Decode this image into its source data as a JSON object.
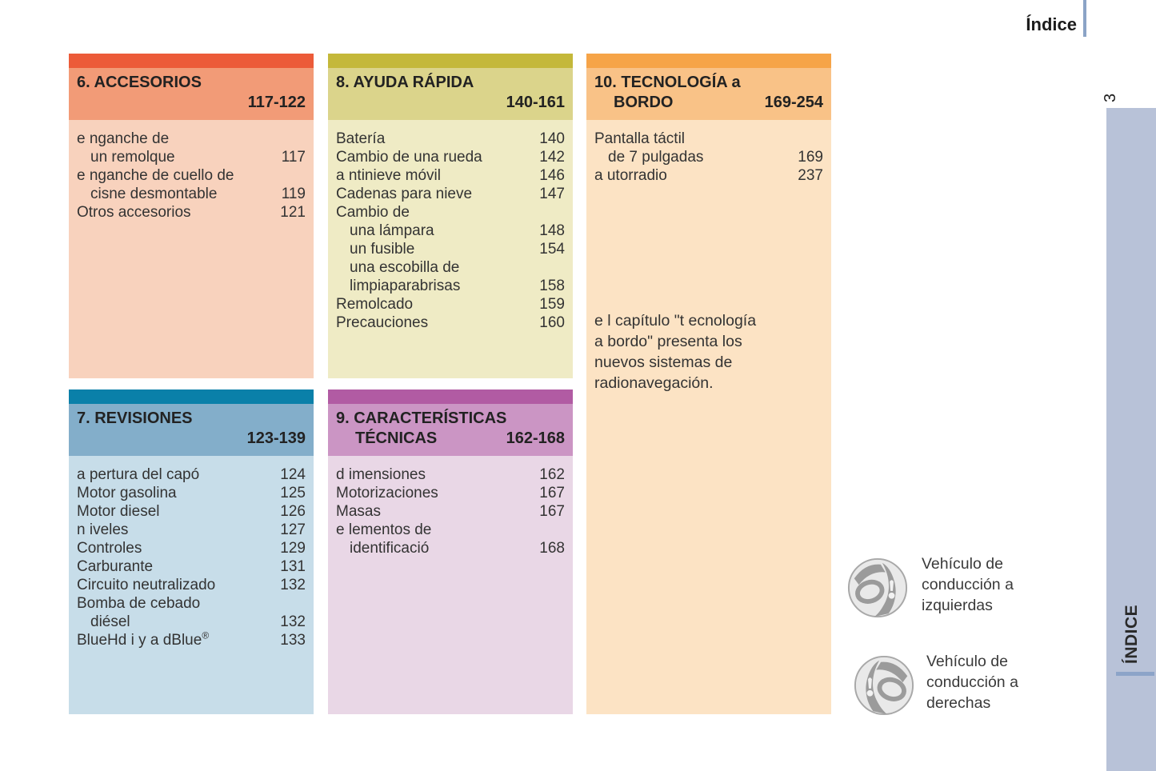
{
  "page": {
    "title": "Índice",
    "side_tab": "ÍNDICE",
    "page_number": "3"
  },
  "sections": [
    {
      "title_line1": "6. ACCESORIOS",
      "title_line2": "",
      "range": "117-122",
      "colors": {
        "bar": "#ec5b39",
        "header": "#f29b77",
        "body": "#f8d2bd"
      },
      "entries": [
        {
          "lines": [
            [
              "e nganche de",
              0
            ],
            [
              "un remolque",
              1
            ]
          ],
          "page": "117"
        },
        {
          "lines": [
            [
              "e nganche de cuello de",
              0
            ],
            [
              "cisne desmontable",
              1
            ]
          ],
          "page": "119"
        },
        {
          "lines": [
            [
              "Otros accesorios",
              0
            ]
          ],
          "page": "121"
        }
      ]
    },
    {
      "title_line1": "8. AYUDA RÁPIDA",
      "title_line2": "",
      "range": "140-161",
      "colors": {
        "bar": "#c4b83a",
        "header": "#dbd48b",
        "body": "#efebc5"
      },
      "entries": [
        {
          "lines": [
            [
              "Batería",
              0
            ]
          ],
          "page": "140"
        },
        {
          "lines": [
            [
              "Cambio de una rueda",
              0
            ]
          ],
          "page": "142"
        },
        {
          "lines": [
            [
              "a ntinieve móvil",
              0
            ]
          ],
          "page": "146"
        },
        {
          "lines": [
            [
              "Cadenas para nieve",
              0
            ]
          ],
          "page": "147"
        },
        {
          "lines": [
            [
              "Cambio de",
              0
            ]
          ],
          "page": ""
        },
        {
          "lines": [
            [
              "una lámpara",
              1
            ]
          ],
          "page": "148"
        },
        {
          "lines": [
            [
              "un fusible",
              1
            ]
          ],
          "page": "154"
        },
        {
          "lines": [
            [
              "una escobilla de",
              1
            ],
            [
              "limpiaparabrisas",
              1
            ]
          ],
          "page": "158"
        },
        {
          "lines": [
            [
              "Remolcado",
              0
            ]
          ],
          "page": "159"
        },
        {
          "lines": [
            [
              "Precauciones",
              0
            ]
          ],
          "page": "160"
        }
      ]
    },
    {
      "title_line1": "10. TECNOLOGÍA a",
      "title_line2": "BORDO",
      "range": "169-254",
      "colors": {
        "bar": "#f6a448",
        "header": "#f9c287",
        "body": "#fce3c4"
      },
      "entries": [
        {
          "lines": [
            [
              "Pantalla táctil",
              0
            ],
            [
              "de 7 pulgadas",
              1
            ]
          ],
          "page": "169"
        },
        {
          "lines": [
            [
              "a utorradio",
              0
            ]
          ],
          "page": "237"
        }
      ],
      "note": [
        "e l capítulo \"t ecnología",
        "a bordo\" presenta los",
        "nuevos sistemas de",
        "radionavegación."
      ]
    },
    {
      "title_line1": "7. REVISIONES",
      "title_line2": "",
      "range": "123-139",
      "colors": {
        "bar": "#0a80a9",
        "header": "#83aeca",
        "body": "#c7dde9"
      },
      "entries": [
        {
          "lines": [
            [
              "a pertura del capó",
              0
            ]
          ],
          "page": "124"
        },
        {
          "lines": [
            [
              "Motor gasolina",
              0
            ]
          ],
          "page": "125"
        },
        {
          "lines": [
            [
              "Motor diesel",
              0
            ]
          ],
          "page": "126"
        },
        {
          "lines": [
            [
              "n iveles",
              0
            ]
          ],
          "page": "127"
        },
        {
          "lines": [
            [
              "Controles",
              0
            ]
          ],
          "page": "129"
        },
        {
          "lines": [
            [
              "Carburante",
              0
            ]
          ],
          "page": "131"
        },
        {
          "lines": [
            [
              "Circuito neutralizado",
              0
            ]
          ],
          "page": "132"
        },
        {
          "lines": [
            [
              "Bomba de cebado",
              0
            ],
            [
              "diésel",
              1
            ]
          ],
          "page": "132"
        },
        {
          "lines": [
            [
              "BlueHd i y a dBlue®",
              0
            ]
          ],
          "page": "133"
        }
      ]
    },
    {
      "title_line1": "9. CARACTERÍSTICAS",
      "title_line2": "TÉCNICAS",
      "range": "162-168",
      "colors": {
        "bar": "#b15ba3",
        "header": "#cb95c4",
        "body": "#e9d7e6"
      },
      "entries": [
        {
          "lines": [
            [
              "d imensiones",
              0
            ]
          ],
          "page": "162"
        },
        {
          "lines": [
            [
              "Motorizaciones",
              0
            ]
          ],
          "page": "167"
        },
        {
          "lines": [
            [
              "Masas",
              0
            ]
          ],
          "page": "167"
        },
        {
          "lines": [
            [
              "e lementos de",
              0
            ],
            [
              "identificació",
              1
            ]
          ],
          "page": "168"
        }
      ]
    }
  ],
  "legend": [
    {
      "icon": "left-hand-drive-icon",
      "lines": [
        "Vehículo de",
        "conducción a",
        "izquierdas"
      ]
    },
    {
      "icon": "right-hand-drive-icon",
      "lines": [
        "Vehículo de",
        "conducción a",
        "derechas"
      ]
    }
  ],
  "accents": {
    "rule_blue": "#8ba3c6",
    "strip_blue": "#b8c2d8",
    "icon_gray": "#9b9b9b"
  }
}
